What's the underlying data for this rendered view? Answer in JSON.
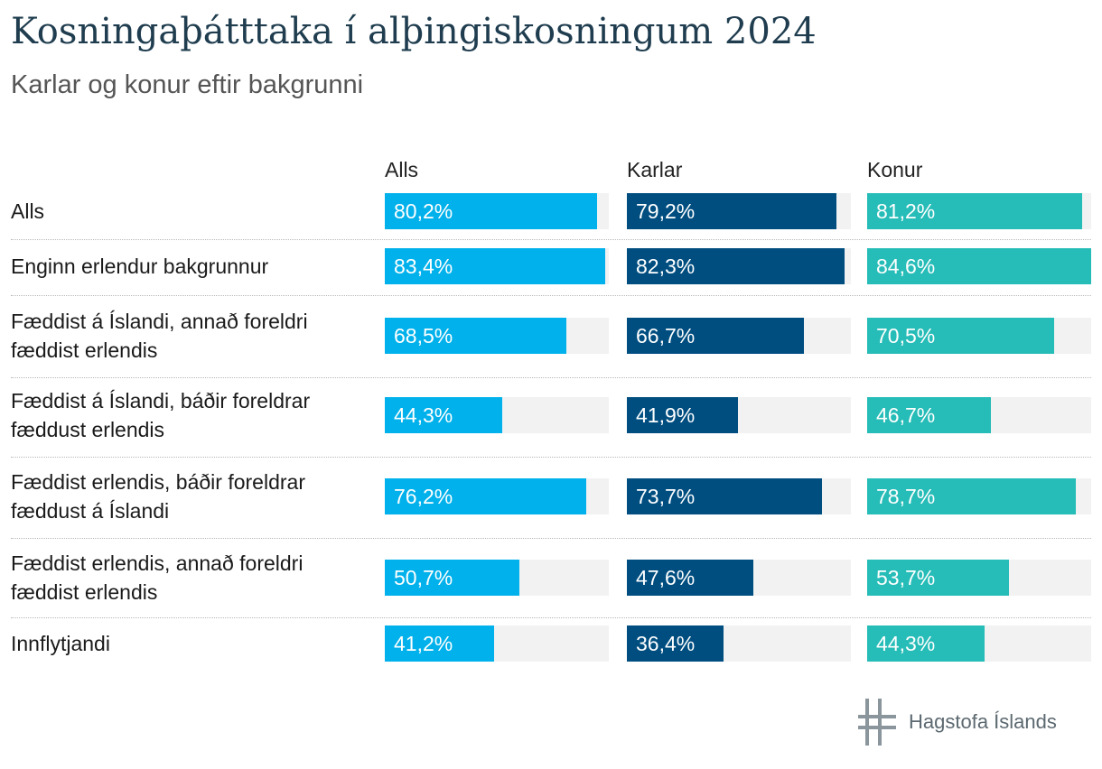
{
  "title": "Kosningaþátttaka í alþingiskosningum 2024",
  "subtitle": "Karlar og konur eftir bakgrunni",
  "logo_text": "Hagstofa Íslands",
  "colors": {
    "Alls": "#00b1eb",
    "Karlar": "#004e80",
    "Konur": "#26bcb7",
    "track": "#f2f2f2"
  },
  "chart_data": {
    "type": "bar",
    "orientation": "horizontal",
    "categories": [
      "Alls",
      "Enginn erlendur bakgrunnur",
      "Fæddist á Íslandi, annað foreldri fæddist erlendis",
      "Fæddist á Íslandi, báðir foreldrar fæddust erlendis",
      "Fæddist erlendis, báðir foreldrar fæddust á Íslandi",
      "Fæddist erlendis, annað foreldri fæddist erlendis",
      "Innflytjandi"
    ],
    "series": [
      {
        "name": "Alls",
        "values": [
          80.2,
          83.4,
          68.5,
          44.3,
          76.2,
          50.7,
          41.2
        ],
        "labels": [
          "80,2%",
          "83,4%",
          "68,5%",
          "44,3%",
          "76,2%",
          "50,7%",
          "41,2%"
        ]
      },
      {
        "name": "Karlar",
        "values": [
          79.2,
          82.3,
          66.7,
          41.9,
          73.7,
          47.6,
          36.4
        ],
        "labels": [
          "79,2%",
          "82,3%",
          "66,7%",
          "41,9%",
          "73,7%",
          "47,6%",
          "36,4%"
        ]
      },
      {
        "name": "Konur",
        "values": [
          81.2,
          84.6,
          70.5,
          46.7,
          78.7,
          53.7,
          44.3
        ],
        "labels": [
          "81,2%",
          "84,6%",
          "70,5%",
          "46,7%",
          "78,7%",
          "53,7%",
          "44,3%"
        ]
      }
    ],
    "xlim": [
      0,
      84.6
    ],
    "legend": "column-headers",
    "grid": false
  }
}
